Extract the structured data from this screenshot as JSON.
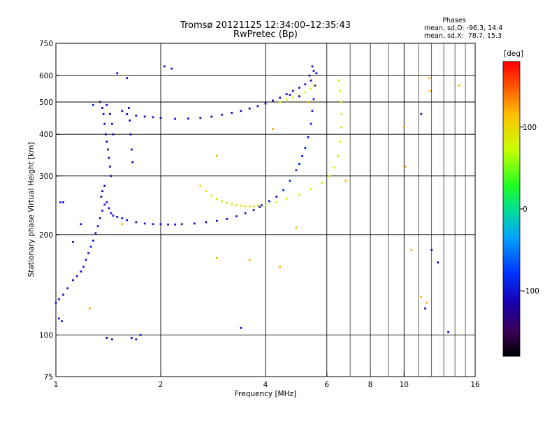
{
  "chart_data": {
    "type": "scatter",
    "title": "Tromsø 20121125 12:34:00–12:35:43",
    "subtitle": "RwPretec (Bp)",
    "xlabel": "Frequency [MHz]",
    "ylabel": "Stationary phase Virtual Height [km]",
    "x_scale": "log",
    "y_scale": "log",
    "xlim": [
      1,
      16
    ],
    "ylim": [
      75,
      750
    ],
    "x_ticks": [
      1,
      2,
      4,
      6,
      8,
      10,
      16
    ],
    "y_ticks": [
      75,
      100,
      200,
      300,
      400,
      500,
      600,
      750
    ],
    "x_tick_labels": [
      "1",
      "2",
      "4",
      "6",
      "8",
      "10",
      "16"
    ],
    "y_tick_labels": [
      "75",
      "100",
      "200",
      "300",
      "400",
      "500",
      "600",
      "750"
    ],
    "x_gridlines": [
      2,
      4,
      6,
      8,
      10
    ],
    "x_minor_gridlines": [
      7,
      9,
      11,
      12,
      13,
      14,
      15
    ],
    "y_gridlines": [
      100,
      200,
      300,
      400,
      500,
      600
    ],
    "grid": true,
    "legend": {
      "heading": "Phases",
      "line1": "mean, sd,O: -96.3, 14.4",
      "line2": "mean, sd,X:  78.7, 15.3",
      "placement": "top-right"
    },
    "colorbar": {
      "label": "[deg]",
      "min": -180,
      "max": 180,
      "ticks": [
        100,
        0,
        -100
      ],
      "tick_labels": [
        "100",
        "0",
        "-100"
      ],
      "placement": "right"
    },
    "series": [
      {
        "trace": "o-mode-E-and-low-F",
        "phase_deg": -100,
        "points": [
          [
            1.0,
            125
          ],
          [
            1.02,
            128
          ],
          [
            1.05,
            132
          ],
          [
            1.08,
            138
          ],
          [
            1.12,
            146
          ],
          [
            1.15,
            150
          ],
          [
            1.18,
            155
          ],
          [
            1.2,
            160
          ],
          [
            1.22,
            168
          ],
          [
            1.24,
            176
          ],
          [
            1.26,
            184
          ],
          [
            1.28,
            192
          ],
          [
            1.3,
            202
          ],
          [
            1.32,
            212
          ],
          [
            1.34,
            224
          ],
          [
            1.36,
            236
          ],
          [
            1.38,
            246
          ],
          [
            1.4,
            250
          ],
          [
            1.42,
            240
          ],
          [
            1.44,
            232
          ],
          [
            1.46,
            228
          ],
          [
            1.5,
            226
          ],
          [
            1.55,
            224
          ],
          [
            1.6,
            221
          ],
          [
            1.7,
            218
          ],
          [
            1.8,
            216
          ],
          [
            1.9,
            215
          ],
          [
            2.0,
            215
          ],
          [
            2.1,
            214.5
          ],
          [
            2.2,
            214.5
          ],
          [
            2.3,
            215
          ],
          [
            2.5,
            216
          ],
          [
            2.7,
            218
          ],
          [
            2.9,
            220
          ],
          [
            3.1,
            223
          ],
          [
            3.3,
            227
          ],
          [
            3.5,
            232
          ],
          [
            3.7,
            237
          ],
          [
            3.85,
            242
          ]
        ]
      },
      {
        "trace": "o-mode-F2",
        "phase_deg": -95,
        "points": [
          [
            3.9,
            245
          ],
          [
            4.1,
            252
          ],
          [
            4.3,
            260
          ],
          [
            4.5,
            272
          ],
          [
            4.7,
            290
          ],
          [
            4.9,
            312
          ],
          [
            5.0,
            326
          ],
          [
            5.1,
            344
          ],
          [
            5.2,
            364
          ],
          [
            5.3,
            392
          ],
          [
            5.4,
            430
          ],
          [
            5.45,
            470
          ],
          [
            5.5,
            510
          ],
          [
            5.55,
            560
          ],
          [
            5.6,
            610
          ]
        ]
      },
      {
        "trace": "o-mode-upper-trace",
        "phase_deg": -105,
        "points": [
          [
            1.55,
            470
          ],
          [
            1.6,
            460
          ],
          [
            1.7,
            455
          ],
          [
            1.8,
            452
          ],
          [
            1.9,
            450
          ],
          [
            2.0,
            448
          ],
          [
            2.2,
            445
          ],
          [
            2.4,
            446
          ],
          [
            2.6,
            448
          ],
          [
            2.8,
            452
          ],
          [
            3.0,
            458
          ],
          [
            3.2,
            464
          ],
          [
            3.4,
            470
          ],
          [
            3.6,
            478
          ],
          [
            3.8,
            486
          ],
          [
            4.0,
            495
          ],
          [
            4.2,
            505
          ],
          [
            4.4,
            515
          ],
          [
            4.6,
            528
          ],
          [
            4.8,
            540
          ],
          [
            5.0,
            552
          ],
          [
            5.2,
            565
          ],
          [
            5.4,
            580
          ]
        ]
      },
      {
        "trace": "o-mode-spread-near-1.4MHz",
        "phase_deg": -110,
        "points": [
          [
            1.34,
            500
          ],
          [
            1.36,
            480
          ],
          [
            1.37,
            460
          ],
          [
            1.38,
            430
          ],
          [
            1.39,
            400
          ],
          [
            1.4,
            380
          ],
          [
            1.41,
            360
          ],
          [
            1.42,
            340
          ],
          [
            1.43,
            320
          ],
          [
            1.44,
            300
          ],
          [
            1.38,
            280
          ],
          [
            1.36,
            270
          ],
          [
            1.35,
            260
          ],
          [
            1.4,
            490
          ],
          [
            1.43,
            460
          ],
          [
            1.45,
            430
          ],
          [
            1.46,
            400
          ],
          [
            1.62,
            480
          ],
          [
            1.63,
            440
          ],
          [
            1.64,
            400
          ],
          [
            1.65,
            360
          ],
          [
            1.66,
            330
          ]
        ]
      },
      {
        "trace": "x-mode-F",
        "phase_deg": 85,
        "points": [
          [
            2.6,
            280
          ],
          [
            2.7,
            270
          ],
          [
            2.8,
            262
          ],
          [
            2.9,
            256
          ],
          [
            3.0,
            252
          ],
          [
            3.1,
            249
          ],
          [
            3.2,
            247
          ],
          [
            3.3,
            245
          ],
          [
            3.4,
            244
          ],
          [
            3.5,
            243
          ],
          [
            3.6,
            243
          ],
          [
            3.7,
            243
          ],
          [
            3.8,
            244
          ]
        ]
      },
      {
        "trace": "x-mode-F2",
        "phase_deg": 70,
        "points": [
          [
            4.0,
            245
          ],
          [
            4.3,
            250
          ],
          [
            4.6,
            256
          ],
          [
            5.0,
            264
          ],
          [
            5.4,
            274
          ],
          [
            5.8,
            286
          ],
          [
            6.1,
            300
          ],
          [
            6.3,
            318
          ],
          [
            6.45,
            345
          ],
          [
            6.55,
            380
          ],
          [
            6.6,
            420
          ],
          [
            6.62,
            460
          ],
          [
            6.6,
            500
          ],
          [
            6.55,
            540
          ],
          [
            6.5,
            580
          ]
        ]
      },
      {
        "trace": "x-mode-upper-trace",
        "phase_deg": 80,
        "points": [
          [
            4.4,
            500
          ],
          [
            4.6,
            508
          ],
          [
            4.8,
            515
          ],
          [
            5.0,
            525
          ],
          [
            5.2,
            535
          ],
          [
            5.4,
            548
          ],
          [
            5.5,
            560
          ]
        ]
      },
      {
        "trace": "scattered",
        "phase_deg": -100,
        "points": [
          [
            1.03,
            250
          ],
          [
            1.05,
            250
          ],
          [
            1.02,
            112
          ],
          [
            1.04,
            110
          ],
          [
            1.45,
            97
          ],
          [
            1.4,
            98
          ],
          [
            1.65,
            98
          ],
          [
            1.7,
            97
          ],
          [
            1.75,
            100
          ],
          [
            3.4,
            105
          ],
          [
            5.5,
            620
          ],
          [
            5.45,
            640
          ],
          [
            5.35,
            600
          ],
          [
            4.7,
            525
          ],
          [
            5.0,
            520
          ],
          [
            2.05,
            640
          ],
          [
            2.15,
            630
          ],
          [
            1.5,
            610
          ],
          [
            1.6,
            590
          ],
          [
            11.2,
            460
          ],
          [
            12.0,
            180
          ],
          [
            12.5,
            165
          ],
          [
            13.4,
            102
          ],
          [
            11.5,
            120
          ],
          [
            1.28,
            490
          ],
          [
            1.12,
            190
          ],
          [
            1.18,
            215
          ]
        ]
      },
      {
        "trace": "scattered-colored",
        "phase_deg": 120,
        "points": [
          [
            11.8,
            590
          ],
          [
            11.9,
            540
          ],
          [
            2.9,
            345
          ],
          [
            2.9,
            170
          ],
          [
            3.6,
            168
          ],
          [
            4.4,
            160
          ],
          [
            4.9,
            210
          ],
          [
            5.3,
            500
          ],
          [
            10.1,
            320
          ],
          [
            10.5,
            180
          ],
          [
            11.2,
            130
          ],
          [
            11.6,
            125
          ],
          [
            14.4,
            560
          ],
          [
            10.0,
            420
          ],
          [
            1.25,
            120
          ],
          [
            4.2,
            415
          ],
          [
            6.8,
            290
          ],
          [
            1.55,
            215
          ]
        ]
      }
    ]
  }
}
